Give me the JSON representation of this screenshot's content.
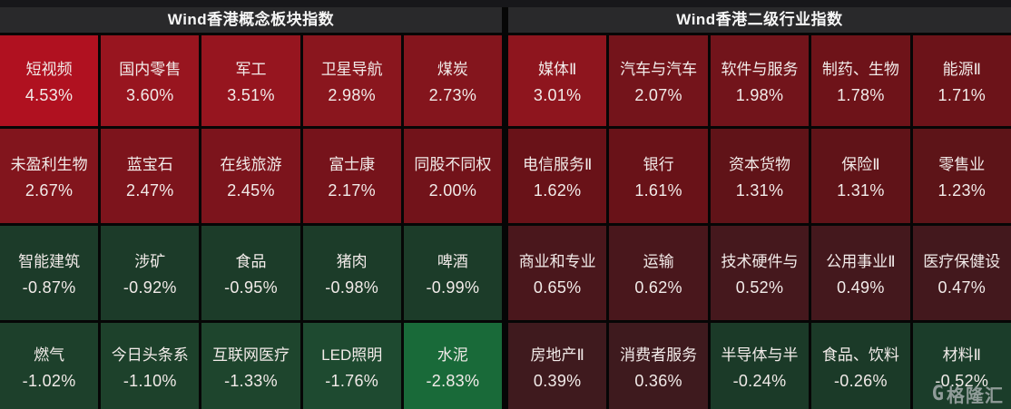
{
  "chart_data": [
    {
      "type": "heatmap",
      "title": "Wind香港概念板块指数",
      "rows": 4,
      "cols": 5,
      "value_format": "percent",
      "cells": [
        {
          "label": "短视频",
          "value": 4.53,
          "display": "4.53%",
          "color": "#b01120"
        },
        {
          "label": "国内零售",
          "value": 3.6,
          "display": "3.60%",
          "color": "#98151f"
        },
        {
          "label": "军工",
          "value": 3.51,
          "display": "3.51%",
          "color": "#96151f"
        },
        {
          "label": "卫星导航",
          "value": 2.98,
          "display": "2.98%",
          "color": "#8a161e"
        },
        {
          "label": "煤炭",
          "value": 2.73,
          "display": "2.73%",
          "color": "#84151d"
        },
        {
          "label": "未盈利生物",
          "value": 2.67,
          "display": "2.67%",
          "color": "#82151d"
        },
        {
          "label": "蓝宝石",
          "value": 2.47,
          "display": "2.47%",
          "color": "#7d141c"
        },
        {
          "label": "在线旅游",
          "value": 2.45,
          "display": "2.45%",
          "color": "#7c141c"
        },
        {
          "label": "富士康",
          "value": 2.17,
          "display": "2.17%",
          "color": "#76131b"
        },
        {
          "label": "同股不同权",
          "value": 2.0,
          "display": "2.00%",
          "color": "#72131a"
        },
        {
          "label": "智能建筑",
          "value": -0.87,
          "display": "-0.87%",
          "color": "#1c3b29"
        },
        {
          "label": "涉矿",
          "value": -0.92,
          "display": "-0.92%",
          "color": "#1c3b29"
        },
        {
          "label": "食品",
          "value": -0.95,
          "display": "-0.95%",
          "color": "#1c3c29"
        },
        {
          "label": "猪肉",
          "value": -0.98,
          "display": "-0.98%",
          "color": "#1c3c29"
        },
        {
          "label": "啤酒",
          "value": -0.99,
          "display": "-0.99%",
          "color": "#1c3c29"
        },
        {
          "label": "燃气",
          "value": -1.02,
          "display": "-1.02%",
          "color": "#1d402b"
        },
        {
          "label": "今日头条系",
          "value": -1.1,
          "display": "-1.10%",
          "color": "#1d412b"
        },
        {
          "label": "互联网医疗",
          "value": -1.33,
          "display": "-1.33%",
          "color": "#1e452d"
        },
        {
          "label": "LED照明",
          "value": -1.76,
          "display": "-1.76%",
          "color": "#1e4a30"
        },
        {
          "label": "水泥",
          "value": -2.83,
          "display": "-2.83%",
          "color": "#196a39"
        }
      ]
    },
    {
      "type": "heatmap",
      "title": "Wind香港二级行业指数",
      "rows": 4,
      "cols": 5,
      "value_format": "percent",
      "cells": [
        {
          "label": "媒体Ⅱ",
          "value": 3.01,
          "display": "3.01%",
          "color": "#8e151e"
        },
        {
          "label": "汽车与汽车",
          "value": 2.07,
          "display": "2.07%",
          "color": "#74141b"
        },
        {
          "label": "软件与服务",
          "value": 1.98,
          "display": "1.98%",
          "color": "#72141b"
        },
        {
          "label": "制药、生物",
          "value": 1.78,
          "display": "1.78%",
          "color": "#6e1319"
        },
        {
          "label": "能源Ⅱ",
          "value": 1.71,
          "display": "1.71%",
          "color": "#6c1319"
        },
        {
          "label": "电信服务Ⅱ",
          "value": 1.62,
          "display": "1.62%",
          "color": "#691218"
        },
        {
          "label": "银行",
          "value": 1.61,
          "display": "1.61%",
          "color": "#691218"
        },
        {
          "label": "资本货物",
          "value": 1.31,
          "display": "1.31%",
          "color": "#601318"
        },
        {
          "label": "保险Ⅱ",
          "value": 1.31,
          "display": "1.31%",
          "color": "#601318"
        },
        {
          "label": "零售业",
          "value": 1.23,
          "display": "1.23%",
          "color": "#5d1418"
        },
        {
          "label": "商业和专业",
          "value": 0.65,
          "display": "0.65%",
          "color": "#4a171c"
        },
        {
          "label": "运输",
          "value": 0.62,
          "display": "0.62%",
          "color": "#49171c"
        },
        {
          "label": "技术硬件与",
          "value": 0.52,
          "display": "0.52%",
          "color": "#45181d"
        },
        {
          "label": "公用事业Ⅱ",
          "value": 0.49,
          "display": "0.49%",
          "color": "#44181d"
        },
        {
          "label": "医疗保健设",
          "value": 0.47,
          "display": "0.47%",
          "color": "#43181d"
        },
        {
          "label": "房地产Ⅱ",
          "value": 0.39,
          "display": "0.39%",
          "color": "#3f1a1e"
        },
        {
          "label": "消费者服务",
          "value": 0.36,
          "display": "0.36%",
          "color": "#3e1a1e"
        },
        {
          "label": "半导体与半",
          "value": -0.24,
          "display": "-0.24%",
          "color": "#1b3a28"
        },
        {
          "label": "食品、饮料",
          "value": -0.26,
          "display": "-0.26%",
          "color": "#1b3a28"
        },
        {
          "label": "材料Ⅱ",
          "value": -0.52,
          "display": "-0.52%",
          "color": "#1b3d2a"
        }
      ]
    }
  ],
  "watermark": {
    "logo": "G",
    "brand": "格隆汇"
  }
}
